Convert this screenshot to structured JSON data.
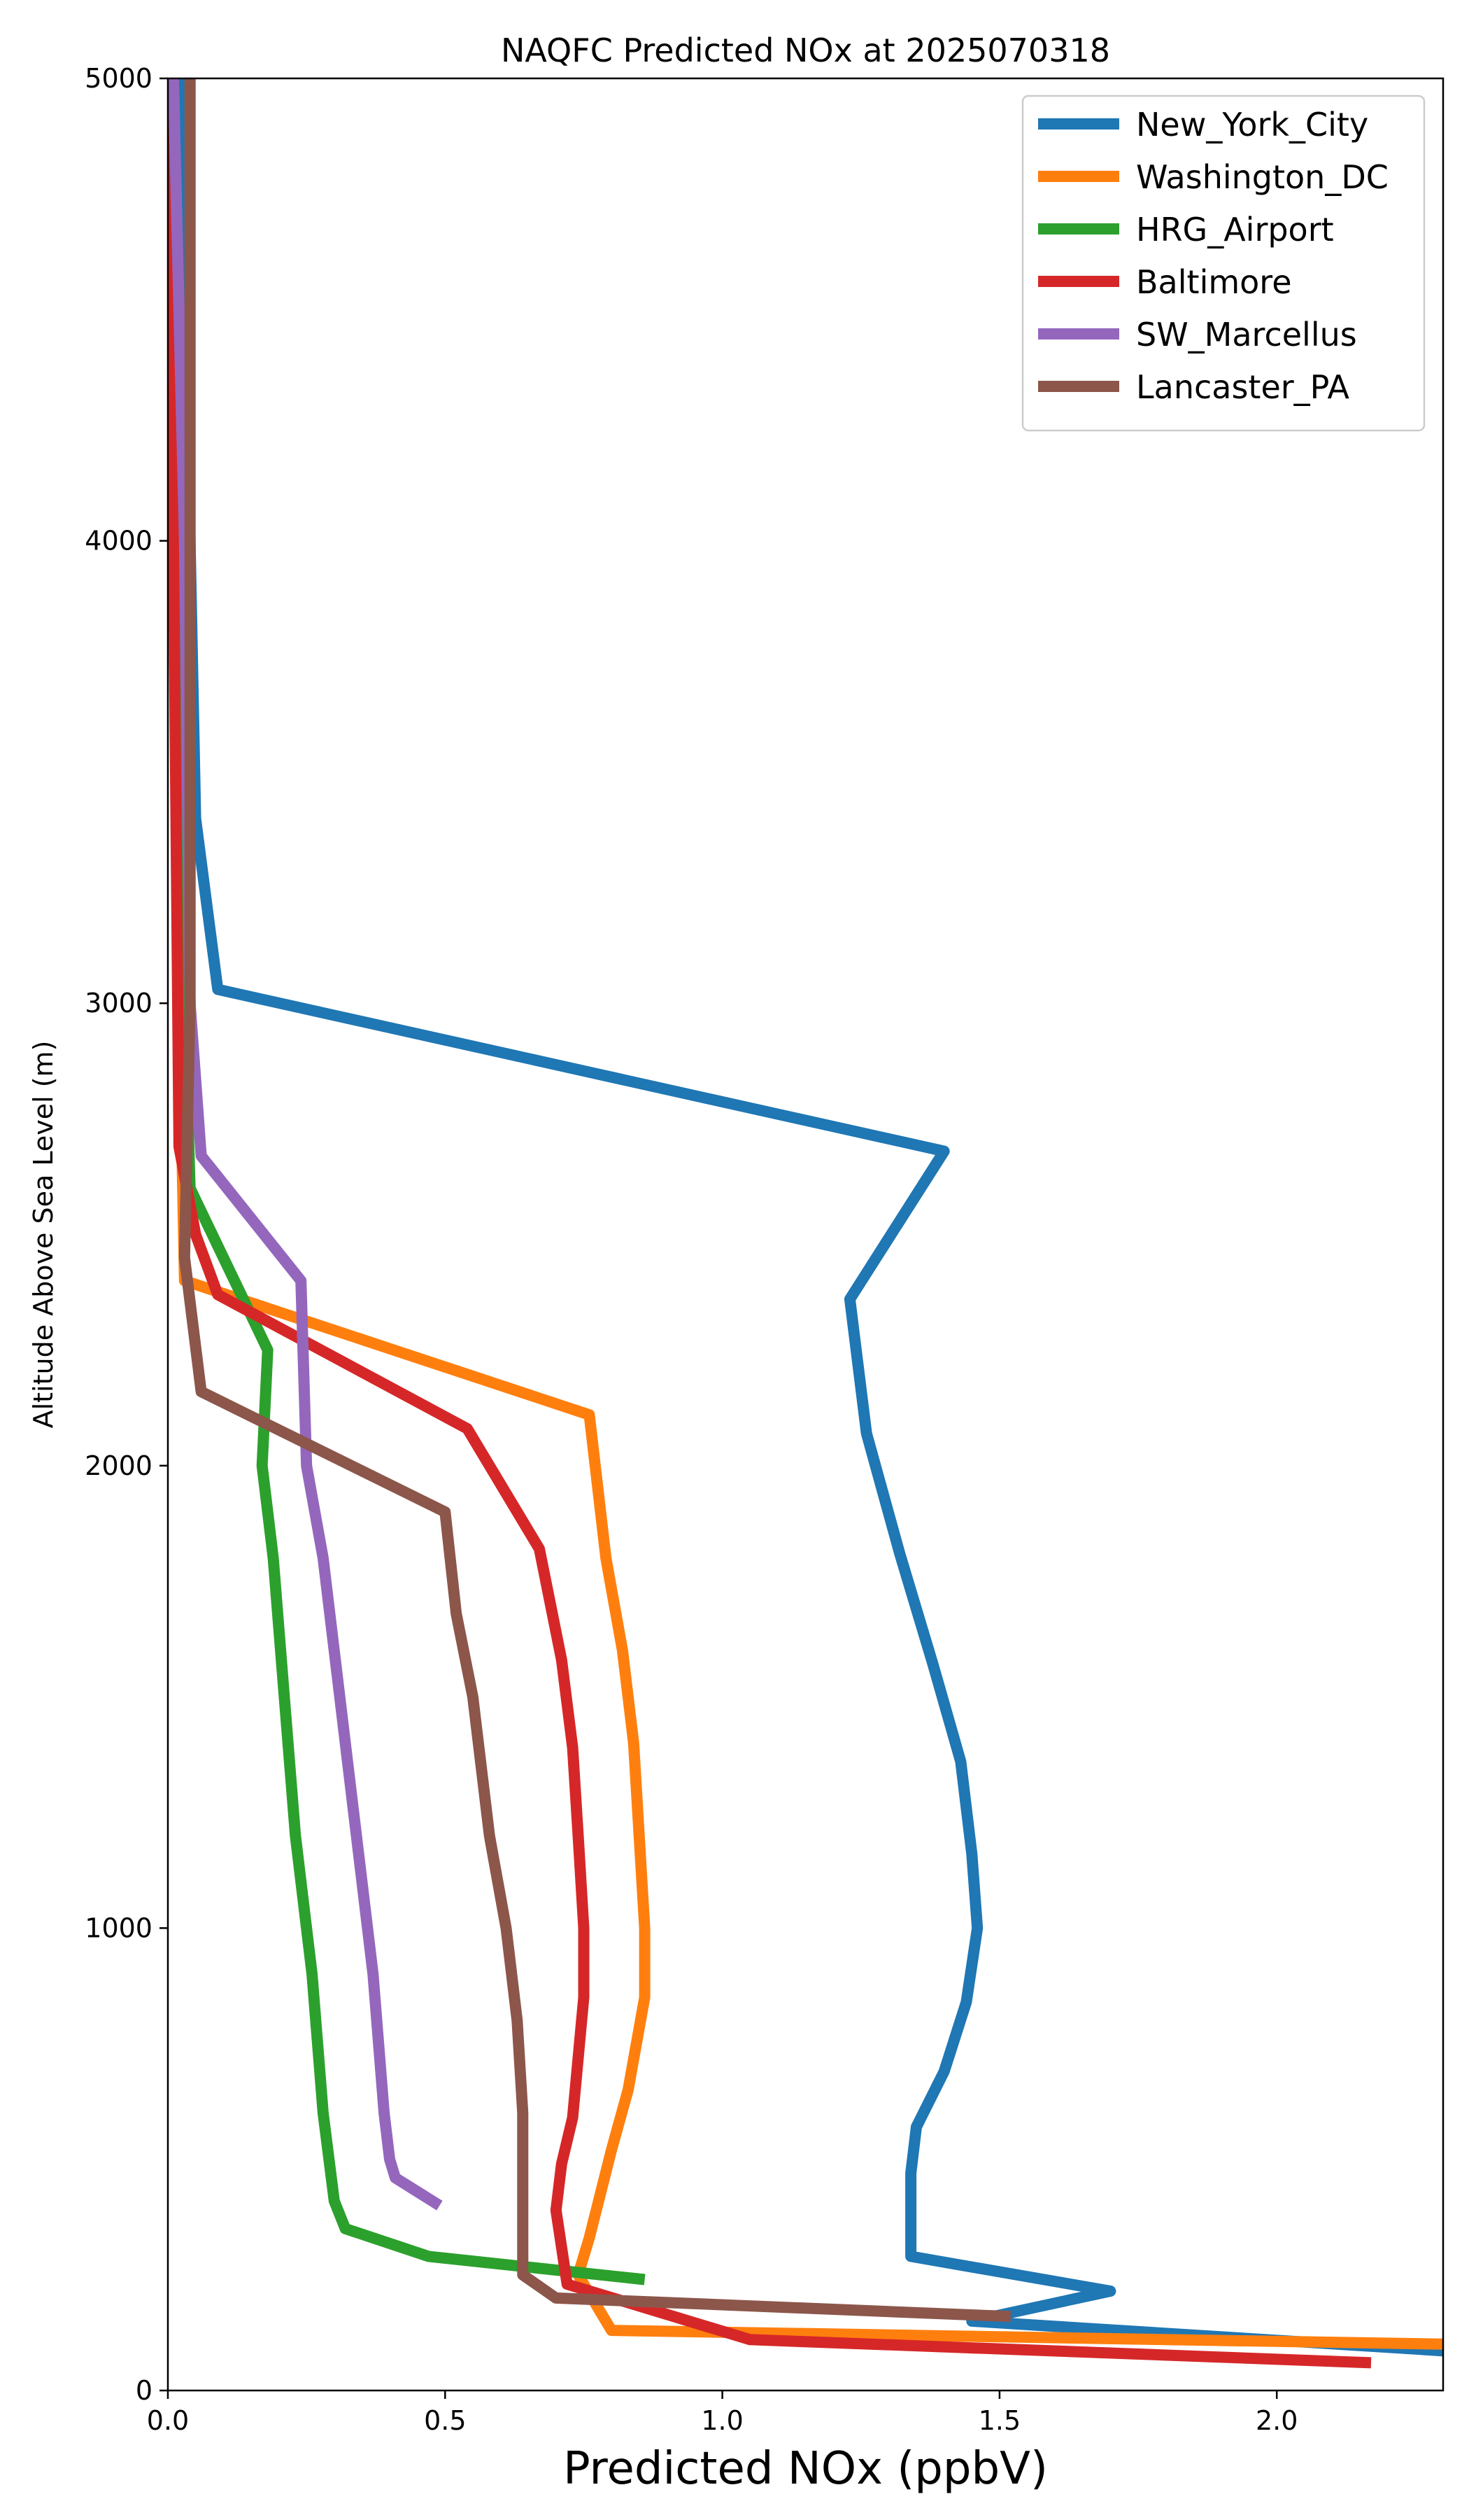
{
  "chart_data": {
    "type": "line",
    "title": "NAQFC Predicted NOx at 2025070318",
    "xlabel": "Predicted NOx (ppbV)",
    "ylabel": "Altitude Above Sea Level (m)",
    "xlim": [
      0,
      2.3
    ],
    "ylim": [
      0,
      5000
    ],
    "x_ticks": [
      0.0,
      0.5,
      1.0,
      1.5,
      2.0
    ],
    "x_tick_labels": [
      "0.0",
      "0.5",
      "1.0",
      "1.5",
      "2.0"
    ],
    "y_ticks": [
      0,
      1000,
      2000,
      3000,
      4000,
      5000
    ],
    "y_tick_labels": [
      "0",
      "1000",
      "2000",
      "3000",
      "4000",
      "5000"
    ],
    "grid": false,
    "legend": "top-right",
    "series": [
      {
        "name": "New_York_City",
        "color": "#1f77b4",
        "x": [
          2.31,
          1.45,
          1.7,
          1.34,
          1.34,
          1.35,
          1.4,
          1.44,
          1.46,
          1.45,
          1.43,
          1.38,
          1.32,
          1.26,
          1.23,
          1.4,
          0.09,
          0.05,
          0.04,
          0.03,
          0.02
        ],
        "y": [
          85,
          150,
          215,
          290,
          470,
          570,
          690,
          840,
          1000,
          1160,
          1360,
          1570,
          1810,
          2070,
          2360,
          2680,
          3030,
          3400,
          4000,
          4500,
          5000
        ]
      },
      {
        "name": "Washington_DC",
        "color": "#ff7f0e",
        "x": [
          2.31,
          0.8,
          0.74,
          0.76,
          0.8,
          0.83,
          0.86,
          0.86,
          0.85,
          0.84,
          0.82,
          0.79,
          0.76,
          0.03,
          0.02,
          0.01,
          0.01
        ],
        "y": [
          100,
          130,
          250,
          330,
          520,
          650,
          850,
          1000,
          1200,
          1400,
          1600,
          1800,
          2110,
          2400,
          3000,
          4000,
          5000
        ]
      },
      {
        "name": "HRG_Airport",
        "color": "#2ca02c",
        "x": [
          0.86,
          0.47,
          0.32,
          0.3,
          0.28,
          0.26,
          0.23,
          0.21,
          0.19,
          0.17,
          0.18,
          0.04,
          0.03,
          0.02,
          0.01
        ],
        "y": [
          240,
          290,
          350,
          410,
          600,
          900,
          1200,
          1500,
          1800,
          2000,
          2250,
          2600,
          3000,
          4000,
          5000
        ]
      },
      {
        "name": "Baltimore",
        "color": "#d62728",
        "x": [
          2.17,
          1.05,
          0.72,
          0.7,
          0.71,
          0.73,
          0.75,
          0.75,
          0.74,
          0.73,
          0.71,
          0.67,
          0.54,
          0.09,
          0.05,
          0.02,
          0.01,
          0.0
        ],
        "y": [
          60,
          110,
          230,
          390,
          490,
          590,
          850,
          1000,
          1200,
          1390,
          1580,
          1820,
          2080,
          2370,
          2500,
          2690,
          4000,
          5000
        ]
      },
      {
        "name": "SW_Marcellus",
        "color": "#9467bd",
        "x": [
          0.49,
          0.41,
          0.4,
          0.39,
          0.37,
          0.34,
          0.31,
          0.28,
          0.25,
          0.24,
          0.06,
          0.04,
          0.03,
          0.01
        ],
        "y": [
          400,
          460,
          500,
          600,
          900,
          1200,
          1500,
          1800,
          2000,
          2400,
          2670,
          3000,
          4000,
          5000
        ]
      },
      {
        "name": "Lancaster_PA",
        "color": "#8c564b",
        "x": [
          1.52,
          0.7,
          0.64,
          0.64,
          0.64,
          0.63,
          0.61,
          0.58,
          0.55,
          0.52,
          0.5,
          0.06,
          0.03,
          0.04,
          0.04,
          0.04
        ],
        "y": [
          160,
          200,
          250,
          400,
          600,
          800,
          1000,
          1200,
          1500,
          1680,
          1900,
          2160,
          2450,
          3000,
          4000,
          5000
        ]
      }
    ]
  }
}
